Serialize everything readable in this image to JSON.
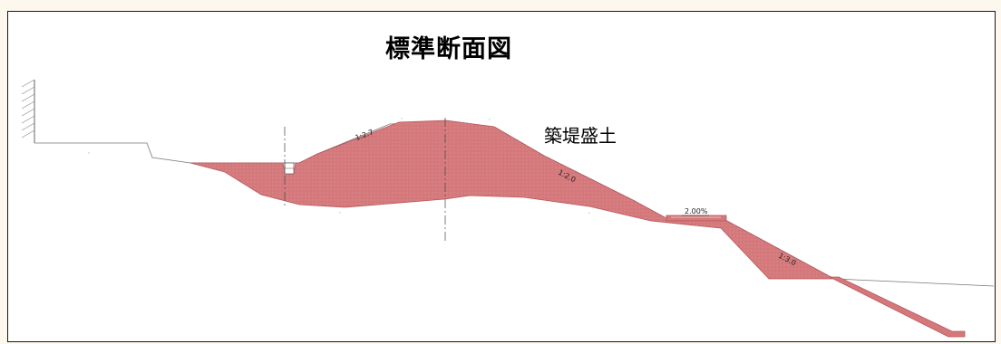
{
  "drawing": {
    "title": "標準断面図",
    "fill_label": "築堤盛土",
    "colors": {
      "fill": "#d4787b",
      "fill_edge": "#b85559",
      "line": "#555555",
      "background": "#ffffff",
      "border": "#1a1a1a"
    },
    "slope_labels": [
      {
        "id": "upstream-slope",
        "text": "1:2.7"
      },
      {
        "id": "downstream-slope-upper",
        "text": "1:2.0"
      },
      {
        "id": "berm-crossfall",
        "text": "2.00%"
      },
      {
        "id": "downstream-slope-lower",
        "text": "1:3.0"
      }
    ]
  }
}
